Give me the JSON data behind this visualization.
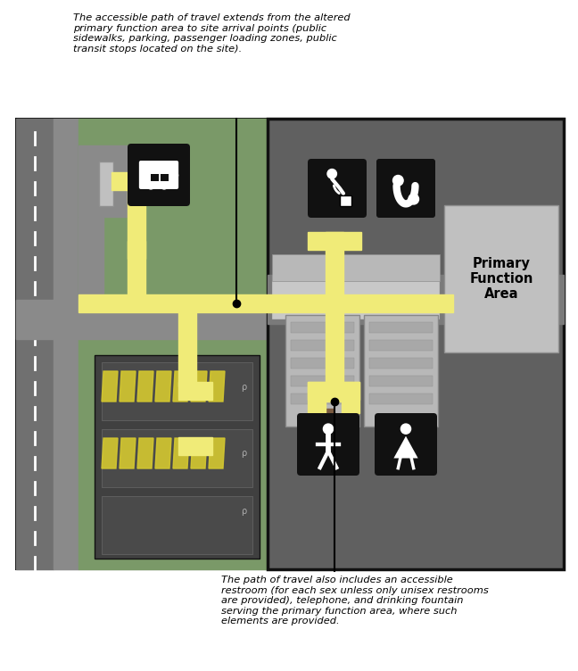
{
  "fig_width": 6.48,
  "fig_height": 7.52,
  "bg_color": "#ffffff",
  "top_note": "The accessible path of travel extends from the altered\nprimary function area to site arrival points (public\nsidewalks, parking, passenger loading zones, public\ntransit stops located on the site).",
  "bottom_note": "The path of travel also includes an accessible\nrestroom (for each sex unless only unisex restrooms\nare provided), telephone, and drinking fountain\nserving the primary function area, where such\nelements are provided.",
  "primary_fn_label": "Primary\nFunction\nArea",
  "colors": {
    "outer_green": "#7a9968",
    "med_green": "#6b8a5a",
    "sidewalk_gray": "#8a8a8a",
    "road_gray": "#707070",
    "building_dark": "#606060",
    "corridor_mid": "#7a7a7a",
    "light_gray": "#b8b8b8",
    "lighter_gray": "#c8c8c8",
    "path_yellow": "#f0eb78",
    "parking_dark": "#404040",
    "black": "#111111",
    "white": "#ffffff",
    "stripe_yellow": "#d4c830",
    "primary_area_bg": "#c0c0c0",
    "dark_border": "#111111",
    "pole_gray": "#c0c0c0"
  }
}
